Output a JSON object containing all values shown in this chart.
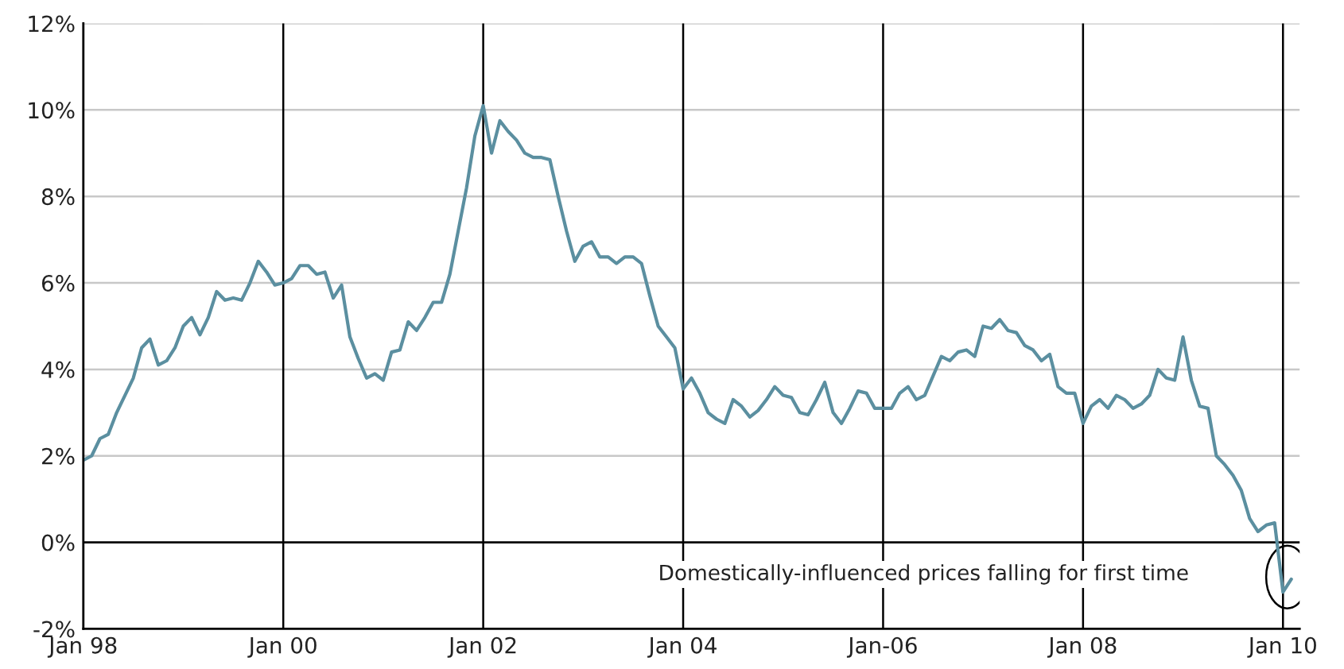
{
  "chart_data": {
    "type": "line",
    "x": [
      "1998-01",
      "1998-02",
      "1998-03",
      "1998-04",
      "1998-05",
      "1998-06",
      "1998-07",
      "1998-08",
      "1998-09",
      "1998-10",
      "1998-11",
      "1998-12",
      "1999-01",
      "1999-02",
      "1999-03",
      "1999-04",
      "1999-05",
      "1999-06",
      "1999-07",
      "1999-08",
      "1999-09",
      "1999-10",
      "1999-11",
      "1999-12",
      "2000-01",
      "2000-02",
      "2000-03",
      "2000-04",
      "2000-05",
      "2000-06",
      "2000-07",
      "2000-08",
      "2000-09",
      "2000-10",
      "2000-11",
      "2000-12",
      "2001-01",
      "2001-02",
      "2001-03",
      "2001-04",
      "2001-05",
      "2001-06",
      "2001-07",
      "2001-08",
      "2001-09",
      "2001-10",
      "2001-11",
      "2001-12",
      "2002-01",
      "2002-02",
      "2002-03",
      "2002-04",
      "2002-05",
      "2002-06",
      "2002-07",
      "2002-08",
      "2002-09",
      "2002-10",
      "2002-11",
      "2002-12",
      "2003-01",
      "2003-02",
      "2003-03",
      "2003-04",
      "2003-05",
      "2003-06",
      "2003-07",
      "2003-08",
      "2003-09",
      "2003-10",
      "2003-11",
      "2003-12",
      "2004-01",
      "2004-02",
      "2004-03",
      "2004-04",
      "2004-05",
      "2004-06",
      "2004-07",
      "2004-08",
      "2004-09",
      "2004-10",
      "2004-11",
      "2004-12",
      "2005-01",
      "2005-02",
      "2005-03",
      "2005-04",
      "2005-05",
      "2005-06",
      "2005-07",
      "2005-08",
      "2005-09",
      "2005-10",
      "2005-11",
      "2005-12",
      "2006-01",
      "2006-02",
      "2006-03",
      "2006-04",
      "2006-05",
      "2006-06",
      "2006-07",
      "2006-08",
      "2006-09",
      "2006-10",
      "2006-11",
      "2006-12",
      "2007-01",
      "2007-02",
      "2007-03",
      "2007-04",
      "2007-05",
      "2007-06",
      "2007-07",
      "2007-08",
      "2007-09",
      "2007-10",
      "2007-11",
      "2007-12",
      "2008-01",
      "2008-02",
      "2008-03",
      "2008-04",
      "2008-05",
      "2008-06",
      "2008-07",
      "2008-08",
      "2008-09",
      "2008-10",
      "2008-11",
      "2008-12",
      "2009-01",
      "2009-02",
      "2009-03",
      "2009-04",
      "2009-05",
      "2009-06",
      "2009-07",
      "2009-08",
      "2009-09",
      "2009-10",
      "2009-11",
      "2009-12",
      "2010-01",
      "2010-02"
    ],
    "series": [
      {
        "color": "#5b8fa0",
        "values": [
          1.9,
          2.0,
          2.4,
          2.5,
          3.0,
          3.4,
          3.8,
          4.5,
          4.7,
          4.1,
          4.2,
          4.5,
          5.0,
          5.2,
          4.8,
          5.2,
          5.8,
          5.6,
          5.65,
          5.6,
          6.0,
          6.5,
          6.25,
          5.95,
          6.0,
          6.1,
          6.4,
          6.4,
          6.2,
          6.25,
          5.65,
          5.95,
          4.75,
          4.25,
          3.8,
          3.9,
          3.75,
          4.4,
          4.45,
          5.1,
          4.9,
          5.2,
          5.55,
          5.55,
          6.2,
          7.2,
          8.2,
          9.4,
          10.1,
          9.0,
          9.75,
          9.5,
          9.3,
          9.0,
          8.9,
          8.9,
          8.85,
          8.0,
          7.2,
          6.5,
          6.85,
          6.95,
          6.6,
          6.6,
          6.45,
          6.6,
          6.6,
          6.45,
          5.7,
          5.0,
          4.75,
          4.5,
          3.55,
          3.8,
          3.45,
          3.0,
          2.85,
          2.75,
          3.3,
          3.15,
          2.9,
          3.05,
          3.3,
          3.6,
          3.4,
          3.35,
          3.0,
          2.95,
          3.3,
          3.7,
          3.0,
          2.75,
          3.1,
          3.5,
          3.45,
          3.1,
          3.1,
          3.1,
          3.45,
          3.6,
          3.3,
          3.4,
          3.85,
          4.3,
          4.2,
          4.4,
          4.45,
          4.3,
          5.0,
          4.95,
          5.15,
          4.9,
          4.85,
          4.55,
          4.45,
          4.2,
          4.35,
          3.6,
          3.45,
          3.45,
          2.75,
          3.15,
          3.3,
          3.1,
          3.4,
          3.3,
          3.1,
          3.2,
          3.4,
          4.0,
          3.8,
          3.75,
          4.75,
          3.75,
          3.15,
          3.1,
          2.0,
          1.8,
          1.55,
          1.2,
          0.55,
          0.25,
          0.4,
          0.45,
          -1.15,
          -0.85
        ]
      }
    ],
    "xlim": [
      "1998-01",
      "2010-03"
    ],
    "xticks": [
      {
        "value": "1998-01",
        "label": "Jan 98"
      },
      {
        "value": "2000-01",
        "label": "Jan 00"
      },
      {
        "value": "2002-01",
        "label": "Jan 02"
      },
      {
        "value": "2004-01",
        "label": "Jan 04"
      },
      {
        "value": "2006-01",
        "label": "Jan-06"
      },
      {
        "value": "2008-01",
        "label": "Jan 08"
      },
      {
        "value": "2010-01",
        "label": "Jan 10"
      }
    ],
    "ylim": [
      -2,
      12
    ],
    "yticks": [
      {
        "value": -2,
        "label": "-2%"
      },
      {
        "value": 0,
        "label": "0%"
      },
      {
        "value": 2,
        "label": "2%"
      },
      {
        "value": 4,
        "label": "4%"
      },
      {
        "value": 6,
        "label": "6%"
      },
      {
        "value": 8,
        "label": "8%"
      },
      {
        "value": 10,
        "label": "10%"
      },
      {
        "value": 12,
        "label": "12%"
      }
    ],
    "grid": true,
    "ref_lines": [
      {
        "axis": "y",
        "value": 0,
        "color": "#000000"
      }
    ],
    "annotations": [
      "Domestically-influenced prices falling for first time"
    ],
    "marker": "none",
    "line_style": "solid"
  }
}
